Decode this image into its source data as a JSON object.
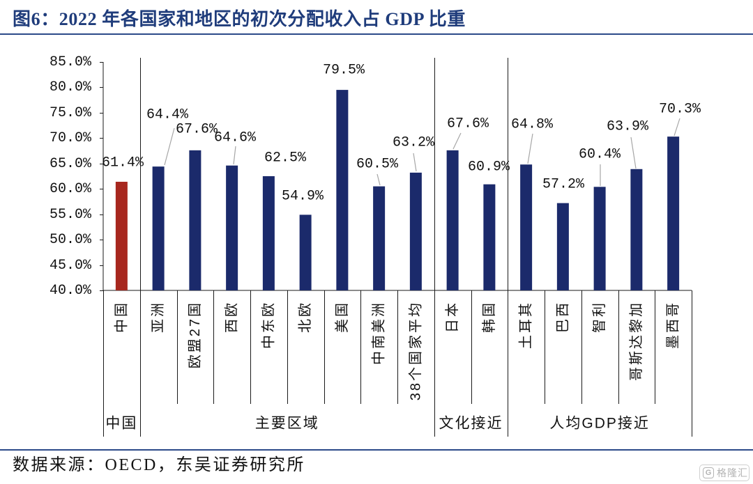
{
  "footer": {
    "source": "数据来源：OECD，东吴证券研究所"
  },
  "watermark": {
    "mark": "G",
    "text": "格隆汇"
  },
  "colors": {
    "title": "#1f3c7b",
    "rule": "#2b4a89",
    "bar": "#1b2a6b",
    "highlight_bar": "#a7271e",
    "leader_line": "#a6a6a6",
    "axis": "#1a1a1a"
  },
  "chart_data": {
    "type": "bar",
    "title": "图6：2022 年各国家和地区的初次分配收入占 GDP 比重",
    "categories": [
      "中国",
      "亚洲",
      "欧盟27国",
      "西欧",
      "中东欧",
      "北欧",
      "美国",
      "中南美洲",
      "38个国家平均",
      "日本",
      "韩国",
      "土耳其",
      "巴西",
      "智利",
      "哥斯达黎加",
      "墨西哥"
    ],
    "values": [
      61.4,
      64.4,
      67.6,
      64.6,
      62.5,
      54.9,
      79.5,
      60.5,
      63.2,
      67.6,
      60.9,
      64.8,
      57.2,
      60.4,
      63.9,
      70.3
    ],
    "value_labels": [
      "61.4%",
      "64.4%",
      "67.6%",
      "64.6%",
      "62.5%",
      "54.9%",
      "79.5%",
      "60.5%",
      "63.2%",
      "67.6%",
      "60.9%",
      "64.8%",
      "57.2%",
      "60.4%",
      "63.9%",
      "70.3%"
    ],
    "highlight_index": 0,
    "groups": [
      {
        "name": "中国",
        "count": 1
      },
      {
        "name": "主要区域",
        "count": 8
      },
      {
        "name": "文化接近",
        "count": 2
      },
      {
        "name": "人均GDP接近",
        "count": 5
      }
    ],
    "ylim": [
      40,
      85
    ],
    "yticks": [
      40,
      45,
      50,
      55,
      60,
      65,
      70,
      75,
      80,
      85
    ],
    "ytick_labels": [
      "40.0%",
      "45.0%",
      "50.0%",
      "55.0%",
      "60.0%",
      "65.0%",
      "70.0%",
      "75.0%",
      "80.0%",
      "85.0%"
    ],
    "grid": false,
    "legend": "none"
  }
}
